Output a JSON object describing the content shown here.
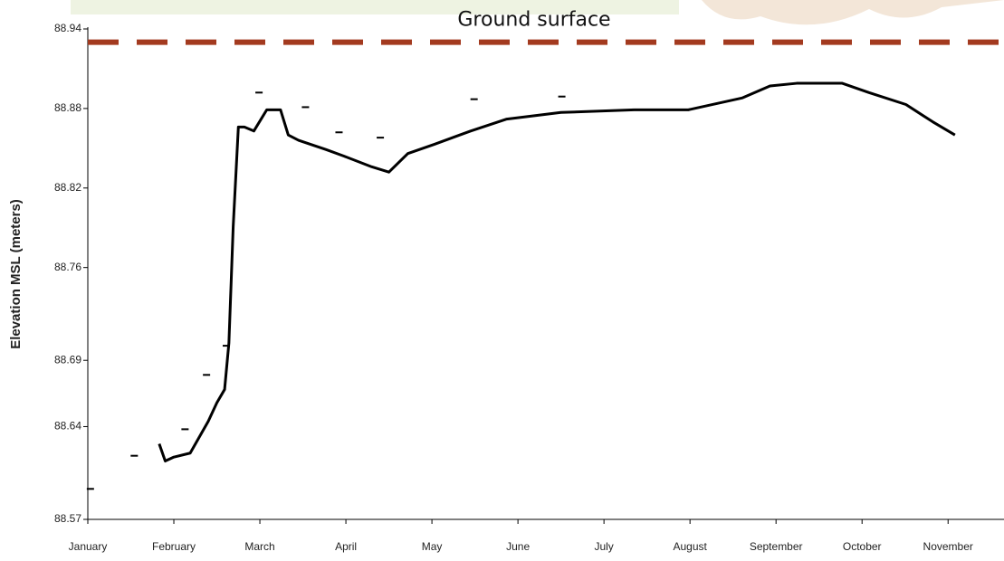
{
  "chart_data": {
    "type": "line",
    "y_label": "Elevation MSL (meters)",
    "reference_line": {
      "label": "Ground surface",
      "value": 88.93,
      "color": "#a33a1f"
    },
    "categories": [
      "January",
      "February",
      "March",
      "April",
      "May",
      "June",
      "July",
      "August",
      "September",
      "October",
      "November"
    ],
    "xticks": [
      0,
      1,
      2,
      3,
      4,
      5,
      6,
      7,
      8,
      9,
      10
    ],
    "xlim": [
      0,
      10.65
    ],
    "ylim": [
      88.57,
      88.94
    ],
    "yticks": [
      88.94,
      88.88,
      88.82,
      88.76,
      88.69,
      88.64,
      88.57
    ],
    "series": [
      {
        "color": "#000000",
        "x": [
          0.83,
          0.9,
          1.0,
          1.19,
          1.4,
          1.5,
          1.59,
          1.64,
          1.69,
          1.75,
          1.82,
          1.93,
          2.08,
          2.24,
          2.33,
          2.45,
          2.77,
          2.98,
          3.3,
          3.5,
          3.72,
          4.03,
          4.45,
          4.87,
          5.5,
          6.35,
          6.98,
          7.61,
          7.93,
          8.24,
          8.77,
          9.08,
          9.51,
          9.82,
          10.08
        ],
        "values": [
          88.627,
          88.614,
          88.617,
          88.62,
          88.644,
          88.658,
          88.668,
          88.703,
          88.791,
          88.866,
          88.866,
          88.863,
          88.879,
          88.879,
          88.86,
          88.856,
          88.849,
          88.844,
          88.836,
          88.832,
          88.846,
          88.853,
          88.863,
          88.872,
          88.877,
          88.879,
          88.879,
          88.888,
          88.897,
          88.899,
          88.899,
          88.892,
          88.883,
          88.87,
          88.86
        ]
      },
      {
        "type": "scatter",
        "color": "#000000",
        "x": [
          0.03,
          0.54,
          1.13,
          1.38,
          1.61,
          1.99,
          2.53,
          2.92,
          3.4,
          4.49,
          5.51
        ],
        "values": [
          88.593,
          88.618,
          88.638,
          88.679,
          88.701,
          88.892,
          88.881,
          88.862,
          88.858,
          88.887,
          88.889
        ]
      }
    ]
  }
}
